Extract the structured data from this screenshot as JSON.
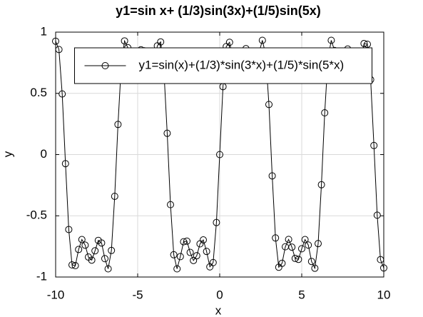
{
  "chart_data": {
    "type": "line",
    "title": "y1=sin x+ (1/3)sin(3x)+(1/5)sin(5x)",
    "xlabel": "x",
    "ylabel": "y",
    "x": [
      -10,
      -9.8,
      -9.6,
      -9.4,
      -9.2,
      -9,
      -8.8,
      -8.6,
      -8.4,
      -8.2,
      -8,
      -7.8,
      -7.6,
      -7.4,
      -7.2,
      -7,
      -6.8,
      -6.6,
      -6.4,
      -6.2,
      -6,
      -5.8,
      -5.6,
      -5.4,
      -5.2,
      -5,
      -4.8,
      -4.6,
      -4.4,
      -4.2,
      -4,
      -3.8,
      -3.6,
      -3.4,
      -3.2,
      -3,
      -2.8,
      -2.6,
      -2.4,
      -2.2,
      -2,
      -1.8,
      -1.6,
      -1.4,
      -1.2,
      -1,
      -0.8,
      -0.6,
      -0.4,
      -0.2,
      0,
      0.2,
      0.4,
      0.6,
      0.8,
      1,
      1.2,
      1.4,
      1.6,
      1.8,
      2,
      2.2,
      2.4,
      2.6,
      2.8,
      3,
      3.2,
      3.4,
      3.6,
      3.8,
      4,
      4.2,
      4.4,
      4.6,
      4.8,
      5,
      5.2,
      5.4,
      5.6,
      5.8,
      6,
      6.2,
      6.4,
      6.6,
      6.8,
      7,
      7.2,
      7.4,
      7.6,
      7.8,
      8,
      8.2,
      8.4,
      8.6,
      8.8,
      9,
      9.2,
      9.4,
      9.6,
      9.8,
      10
    ],
    "series": [
      {
        "name": "y1=sin(x)+(1/3)*sin(3*x)+(1/5)*sin(5*x)",
        "color": "#000000",
        "marker": "circle",
        "values": [
          0.926,
          0.858,
          0.495,
          -0.074,
          -0.612,
          -0.901,
          -0.907,
          -0.775,
          -0.694,
          -0.74,
          -0.837,
          -0.862,
          -0.786,
          -0.701,
          -0.722,
          -0.85,
          -0.933,
          -0.783,
          -0.341,
          0.246,
          0.727,
          0.928,
          0.873,
          0.739,
          0.694,
          0.769,
          0.856,
          0.848,
          0.756,
          0.693,
          0.753,
          0.888,
          0.92,
          0.681,
          0.174,
          -0.409,
          -0.818,
          -0.933,
          -0.833,
          -0.712,
          -0.707,
          -0.799,
          -0.865,
          -0.826,
          -0.729,
          -0.697,
          -0.791,
          -0.917,
          -0.882,
          -0.555,
          0,
          0.555,
          0.882,
          0.917,
          0.791,
          0.697,
          0.729,
          0.826,
          0.865,
          0.799,
          0.707,
          0.712,
          0.833,
          0.933,
          0.818,
          0.409,
          -0.174,
          -0.681,
          -0.92,
          -0.888,
          -0.753,
          -0.693,
          -0.756,
          -0.848,
          -0.856,
          -0.769,
          -0.694,
          -0.739,
          -0.873,
          -0.928,
          -0.727,
          -0.246,
          0.341,
          0.783,
          0.933,
          0.85,
          0.722,
          0.701,
          0.786,
          0.862,
          0.837,
          0.74,
          0.694,
          0.775,
          0.907,
          0.901,
          0.612,
          0.074,
          -0.495,
          -0.858,
          -0.926
        ]
      }
    ],
    "xlim": [
      -10,
      10
    ],
    "xticks": [
      -10,
      -5,
      0,
      5,
      10
    ],
    "ylim": [
      -1,
      1
    ],
    "yticks": [
      -1,
      -0.5,
      0,
      0.5,
      1
    ],
    "grid": true,
    "legend": "north"
  }
}
